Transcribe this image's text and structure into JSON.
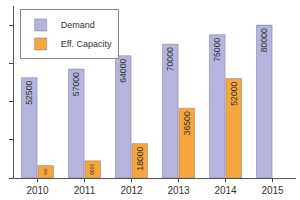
{
  "chart_data": {
    "type": "bar",
    "categories": [
      "2010",
      "2011",
      "2012",
      "2013",
      "2014",
      "2015"
    ],
    "series": [
      {
        "name": "Demand",
        "color": "#b4b4dc",
        "values": [
          52500,
          57000,
          64000,
          70000,
          75000,
          80000
        ]
      },
      {
        "name": "Eff. Capacity",
        "color": "#f6a63c",
        "values": [
          6500,
          9000,
          18000,
          36500,
          52000,
          null
        ]
      }
    ],
    "ylim": [
      0,
      90000
    ],
    "yticks": [
      0,
      20000,
      40000,
      60000,
      80000
    ],
    "grid": false,
    "legend": "top-left",
    "data_labels": true,
    "tick_labels": "x"
  }
}
